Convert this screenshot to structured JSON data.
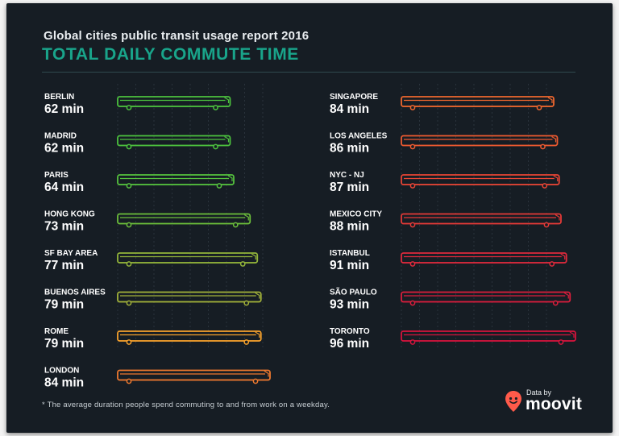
{
  "header": {
    "subtitle": "Global cities public transit usage report 2016",
    "title": "TOTAL DAILY COMMUTE TIME"
  },
  "footnote": "* The average duration people spend commuting to and from work on a weekday.",
  "credit": {
    "small_label": "Data by",
    "brand": "moovit",
    "icon": "map-pin-icon",
    "brand_color": "#ff5a4a"
  },
  "chart_data": {
    "type": "bar",
    "title": "TOTAL DAILY COMMUTE TIME",
    "subtitle": "Global cities public transit usage report 2016",
    "unit": "min",
    "mark_shape": "bus",
    "color_scale": [
      "#52c43e",
      "#9fb03a",
      "#f7942a",
      "#f0582d",
      "#e53838",
      "#d8153a"
    ],
    "value_range": [
      0,
      100
    ],
    "columns": [
      {
        "position": "left",
        "categories": [
          "BERLIN",
          "MADRID",
          "PARIS",
          "HONG KONG",
          "SF BAY AREA",
          "BUENOS AIRES",
          "ROME",
          "LONDON"
        ],
        "values": [
          62,
          62,
          64,
          73,
          77,
          79,
          79,
          84
        ],
        "value_labels": [
          "62 min",
          "62 min",
          "64 min",
          "73 min",
          "77 min",
          "79 min",
          "79 min",
          "84 min"
        ],
        "colors": [
          "#4cc23e",
          "#4cc23e",
          "#55c23e",
          "#6cbf3b",
          "#93b53a",
          "#a3b33a",
          "#f6a12c",
          "#f07a2f"
        ]
      },
      {
        "position": "right",
        "categories": [
          "SINGAPORE",
          "LOS ANGELES",
          "NYC - NJ",
          "MEXICO CITY",
          "ISTANBUL",
          "SÃO PAULO",
          "TORONTO"
        ],
        "values": [
          84,
          86,
          87,
          88,
          91,
          93,
          96
        ],
        "value_labels": [
          "84 min",
          "86 min",
          "87 min",
          "88 min",
          "91 min",
          "93 min",
          "96 min"
        ],
        "colors": [
          "#f0672e",
          "#ee5a30",
          "#e84535",
          "#e53a37",
          "#e02a3c",
          "#dc1e3c",
          "#d5143c"
        ]
      }
    ]
  }
}
